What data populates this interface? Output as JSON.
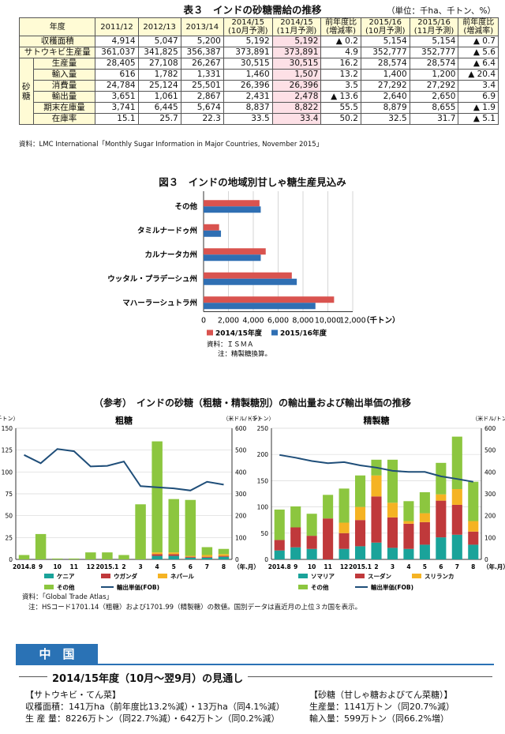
{
  "table3": {
    "title": "表３　インドの砂糖需給の推移",
    "unit": "（単位：千ha、千トン、%）",
    "header_label": "年度",
    "columns": [
      "2011/12",
      "2012/13",
      "2013/14",
      "2014/15\n(10月予測)",
      "2014/15\n(11月予測)",
      "前年度比\n(増減率)",
      "2015/16\n(10月予測)",
      "2015/16\n(11月予測)",
      "前年度比\n(増減率)"
    ],
    "rows": [
      {
        "label": "収穫面積",
        "values": [
          "4,914",
          "5,047",
          "5,200",
          "5,192",
          "5,192",
          "▲ 0.2",
          "5,154",
          "5,154",
          "▲ 0.7"
        ]
      },
      {
        "label": "サトウキビ生産量",
        "values": [
          "361,037",
          "341,825",
          "356,387",
          "373,891",
          "373,891",
          "4.9",
          "352,777",
          "352,777",
          "▲ 5.6"
        ]
      },
      {
        "label": "生産量",
        "values": [
          "28,405",
          "27,108",
          "26,267",
          "30,515",
          "30,515",
          "16.2",
          "28,574",
          "28,574",
          "▲ 6.4"
        ]
      },
      {
        "label": "輸入量",
        "values": [
          "616",
          "1,782",
          "1,331",
          "1,460",
          "1,507",
          "13.2",
          "1,400",
          "1,200",
          "▲ 20.4"
        ]
      },
      {
        "label": "消費量",
        "values": [
          "24,784",
          "25,124",
          "25,501",
          "26,396",
          "26,396",
          "3.5",
          "27,292",
          "27,292",
          "3.4"
        ]
      },
      {
        "label": "輸出量",
        "values": [
          "3,651",
          "1,061",
          "2,867",
          "2,431",
          "2,478",
          "▲ 13.6",
          "2,640",
          "2,650",
          "6.9"
        ]
      },
      {
        "label": "期末在庫量",
        "values": [
          "3,741",
          "6,445",
          "5,674",
          "8,837",
          "8,822",
          "55.5",
          "8,879",
          "8,655",
          "▲ 1.9"
        ]
      },
      {
        "label": "在庫率",
        "values": [
          "15.1",
          "25.7",
          "22.3",
          "33.5",
          "33.4",
          "50.2",
          "32.5",
          "31.7",
          "▲ 5.1"
        ]
      }
    ],
    "sugar_group_label": "砂糖",
    "source": "資料：LMC International「Monthly Sugar Information in Major Countries, November 2015」"
  },
  "chart_data": [
    {
      "type": "bar",
      "orientation": "horizontal",
      "title": "図３　インドの地域別甘しゃ糖生産見込み",
      "categories": [
        "その他",
        "タミルナードゥ州",
        "カルナータカ州",
        "ウッタル・プラデーシュ州",
        "マハーラーシュトラ州"
      ],
      "series": [
        {
          "name": "2014/15年度",
          "color": "#d9534f",
          "values": [
            4500,
            1250,
            5000,
            7100,
            10500
          ]
        },
        {
          "name": "2015/16年度",
          "color": "#2f6fb3",
          "values": [
            4600,
            1400,
            4600,
            7500,
            9000
          ]
        }
      ],
      "xlim": [
        0,
        12000
      ],
      "xticks": [
        "0",
        "2,000",
        "4,000",
        "6,000",
        "8,000",
        "10,000",
        "12,000"
      ],
      "xunit": "（千トン）",
      "source": "資料：ＩＳＭＡ",
      "note": "注：精製糖換算。"
    },
    {
      "type": "bar",
      "stacked": true,
      "title": "粗糖",
      "yleft_unit": "（千トン）",
      "yright_unit": "（米ドル/トン）",
      "categories": [
        "2014.8",
        "9",
        "10",
        "11",
        "12",
        "2015.1",
        "2",
        "3",
        "4",
        "5",
        "6",
        "7",
        "8"
      ],
      "x_unit": "（年.月）",
      "ylim_left": [
        0,
        150
      ],
      "yticks_left": [
        "0",
        "25",
        "50",
        "75",
        "100",
        "125",
        "150"
      ],
      "ylim_right": [
        0,
        600
      ],
      "yticks_right": [
        "0",
        "100",
        "200",
        "300",
        "400",
        "500",
        "600"
      ],
      "series": [
        {
          "name": "ケニア",
          "color": "#1aa39a",
          "values": [
            0,
            0,
            0,
            0,
            0,
            0,
            0,
            0,
            4,
            4,
            2,
            2,
            3
          ]
        },
        {
          "name": "ウガンダ",
          "color": "#c0393b",
          "values": [
            0,
            0,
            0,
            0,
            0,
            0,
            0,
            0,
            2,
            2,
            1,
            1,
            1
          ]
        },
        {
          "name": "ネパール",
          "color": "#f5b323",
          "values": [
            0,
            0,
            0,
            0,
            0,
            0,
            0,
            0,
            2,
            2,
            1,
            2,
            2
          ]
        },
        {
          "name": "その他",
          "color": "#8cc63f",
          "values": [
            5,
            29,
            1,
            1,
            8,
            8,
            5,
            63,
            127,
            61,
            64,
            9,
            6
          ]
        }
      ],
      "line": {
        "name": "輸出単価(FOB)",
        "color": "#1f4e79",
        "values": [
          478,
          440,
          505,
          495,
          425,
          428,
          448,
          335,
          330,
          325,
          315,
          355,
          342
        ]
      }
    },
    {
      "type": "bar",
      "stacked": true,
      "title": "精製糖",
      "yleft_unit": "（千トン）",
      "yright_unit": "（米ドル/トン）",
      "categories": [
        "2014.8",
        "9",
        "10",
        "11",
        "12",
        "2015.1",
        "2",
        "3",
        "4",
        "5",
        "6",
        "7",
        "8"
      ],
      "x_unit": "（年.月）",
      "ylim_left": [
        0,
        250
      ],
      "yticks_left": [
        "0",
        "50",
        "100",
        "150",
        "200",
        "250"
      ],
      "ylim_right": [
        0,
        600
      ],
      "yticks_right": [
        "0",
        "100",
        "200",
        "300",
        "400",
        "500",
        "600"
      ],
      "series": [
        {
          "name": "ソマリア",
          "color": "#1aa39a",
          "values": [
            17,
            23,
            20,
            0,
            20,
            25,
            32,
            22,
            20,
            28,
            42,
            47,
            28
          ]
        },
        {
          "name": "スーダン",
          "color": "#c0393b",
          "values": [
            20,
            38,
            25,
            78,
            30,
            50,
            88,
            58,
            48,
            43,
            70,
            57,
            25
          ]
        },
        {
          "name": "スリランカ",
          "color": "#f5b323",
          "values": [
            0,
            0,
            0,
            0,
            20,
            25,
            40,
            28,
            5,
            17,
            12,
            30,
            20
          ]
        },
        {
          "name": "その他",
          "color": "#8cc63f",
          "values": [
            58,
            40,
            42,
            45,
            65,
            60,
            30,
            82,
            38,
            40,
            60,
            100,
            75
          ]
        }
      ],
      "line": {
        "name": "輸出単価(FOB)",
        "color": "#1f4e79",
        "values": [
          478,
          465,
          450,
          440,
          445,
          430,
          420,
          405,
          400,
          400,
          380,
          368,
          355
        ]
      }
    }
  ],
  "reference_title": "（参考）　インドの砂糖（粗糖・精製糖別）の輸出量および輸出単価の推移",
  "source3": "資料：「Global Trade Atlas」",
  "note3": "注：HSコード1701.14（粗糖）および1701.99（精製糖）の数値。国別データは直近月の上位３カ国を表示。",
  "china": {
    "heading": "中　国",
    "outlook_title": "2014/15年度（10月～翌9月）の見通し",
    "cane_title": "【サトウキビ・てん菜】",
    "cane_line1": "収穫面積：141万ha（前年度比13.2%減）・13万ha（同4.1%減）",
    "cane_line2": "生 産 量：8226万トン（同22.7%減）・642万トン（同0.2%減）",
    "sugar_title": "【砂糖（甘しゃ糖およびてん菜糖）】",
    "sugar_line1": "生産量：1141万トン（同20.7%減）",
    "sugar_line2": "輸入量：599万トン（同66.2%増）"
  }
}
